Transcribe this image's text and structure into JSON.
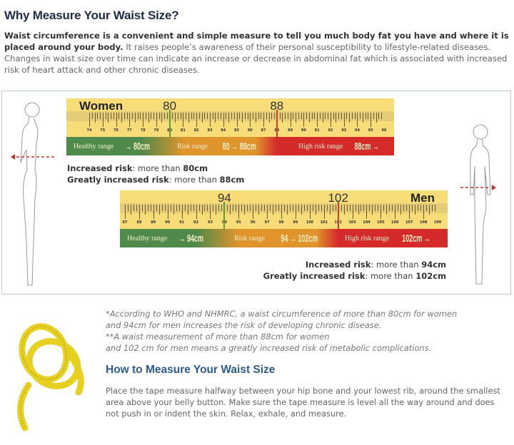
{
  "title": "Why Measure Your Waist Size?",
  "intro": {
    "bold": "Waist circumference is a convenient and simple measure to tell you much body fat you have and where it is placed around your body.",
    "rest": " It raises people’s awareness of their personal susceptibility to lifestyle-related diseases. Changes in waist size over time can indicate an increase or decrease in abdominal fat which is associated with increased risk of heart attack and other chronic diseases."
  },
  "women": {
    "label": "Women",
    "ticks": [
      74,
      75,
      76,
      77,
      78,
      79,
      80,
      81,
      82,
      83,
      84,
      85,
      86,
      87,
      88,
      89,
      90,
      91,
      92,
      93,
      94,
      95,
      96
    ],
    "markers": [
      {
        "value": 80,
        "label": "80",
        "color": "#5aa02c"
      },
      {
        "value": 88,
        "label": "88",
        "color": "#c8402a"
      }
    ],
    "healthy": {
      "label": "Healthy range",
      "value": "→ 80cm"
    },
    "risk": {
      "label": "Risk range",
      "value": "80 → 88cm"
    },
    "high": {
      "label": "High risk range",
      "value": "88cm →"
    },
    "increased_label": "Increased risk",
    "increased_text": ": more than ",
    "increased_value": "80cm",
    "greatly_label": "Greatly increased risk",
    "greatly_text": ": more than ",
    "greatly_value": "88cm"
  },
  "men": {
    "label": "Men",
    "ticks": [
      87,
      88,
      89,
      90,
      91,
      92,
      93,
      94,
      95,
      96,
      97,
      98,
      99,
      100,
      101,
      102,
      103,
      104,
      105,
      106,
      107,
      108,
      109
    ],
    "markers": [
      {
        "value": 94,
        "label": "94",
        "color": "#5aa02c"
      },
      {
        "value": 102,
        "label": "102",
        "color": "#c8402a"
      }
    ],
    "healthy": {
      "label": "Healthy range",
      "value": "→ 94cm"
    },
    "risk": {
      "label": "Risk range",
      "value": "94 → 102cm"
    },
    "high": {
      "label": "High risk range",
      "value": "102cm →"
    },
    "increased_label": "Increased risk",
    "increased_text": ": more than ",
    "increased_value": "94cm",
    "greatly_label": "Greatly increased risk",
    "greatly_text": ": more than ",
    "greatly_value": "102cm"
  },
  "colors": {
    "healthy": "#4f8a4a",
    "risk": "#e0942c",
    "high": "#d42a2a",
    "tape": "#f7dc78"
  },
  "notes": [
    "*According to WHO and NHMRC, a waist circumference of more than 80cm for women",
    "and 94cm for men increases the risk of developing chronic disease.",
    "**A waist measurement of more than 88cm for women",
    "and 102 cm for men means a greatly increased risk of metabolic complications."
  ],
  "howto": {
    "title": "How to Measure Your Waist Size",
    "text": "Place the tape measure halfway between your hip bone and your lowest rib, around the smallest area above your belly button. Make sure the tape measure is level all the way around and does not push in or indent the skin. Relax, exhale, and measure."
  }
}
